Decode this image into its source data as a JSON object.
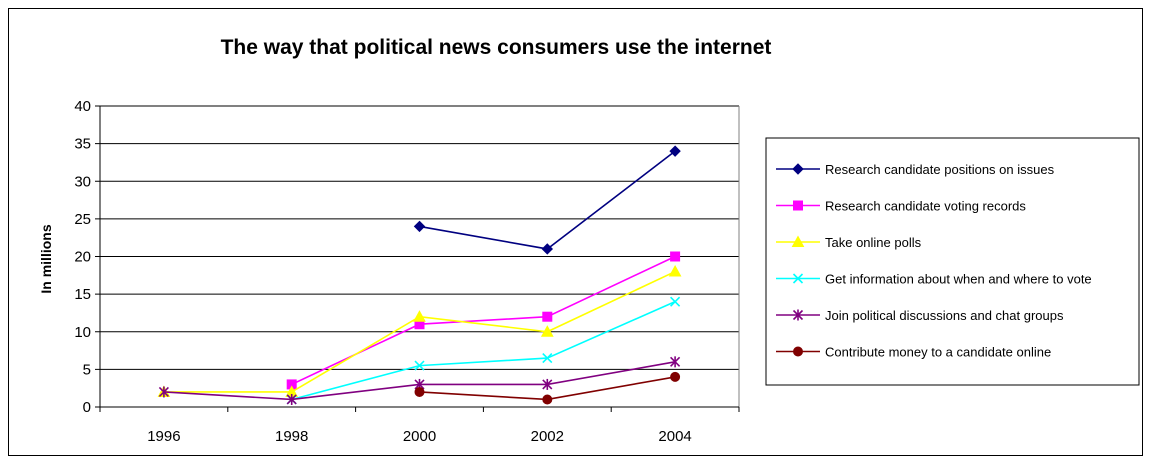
{
  "chart_data": {
    "type": "line",
    "title": "The way that political news consumers use the internet",
    "xlabel": "",
    "ylabel": "In millions",
    "categories": [
      "1996",
      "1998",
      "2000",
      "2002",
      "2004"
    ],
    "yticks": [
      "0",
      "5",
      "10",
      "15",
      "20",
      "25",
      "30",
      "35",
      "40"
    ],
    "ylim": [
      0,
      40
    ],
    "grid": true,
    "legend_position": "right",
    "series": [
      {
        "name": "Research candidate positions on issues",
        "values": [
          null,
          null,
          24,
          21,
          34
        ],
        "color": "#000080",
        "marker": "diamond"
      },
      {
        "name": "Research candidate voting records",
        "values": [
          null,
          3,
          11,
          12,
          20
        ],
        "color": "#FF00FF",
        "marker": "square"
      },
      {
        "name": "Take online polls",
        "values": [
          2,
          2,
          12,
          10,
          18
        ],
        "color": "#FFFF00",
        "marker": "triangle"
      },
      {
        "name": "Get information about when and where to vote",
        "values": [
          null,
          1,
          5.5,
          6.5,
          14
        ],
        "color": "#00FFFF",
        "marker": "x"
      },
      {
        "name": "Join political discussions and chat groups",
        "values": [
          2,
          1,
          3,
          3,
          6
        ],
        "color": "#800080",
        "marker": "star"
      },
      {
        "name": "Contribute money to a candidate online",
        "values": [
          null,
          null,
          2,
          1,
          4
        ],
        "color": "#800000",
        "marker": "circle"
      }
    ]
  }
}
